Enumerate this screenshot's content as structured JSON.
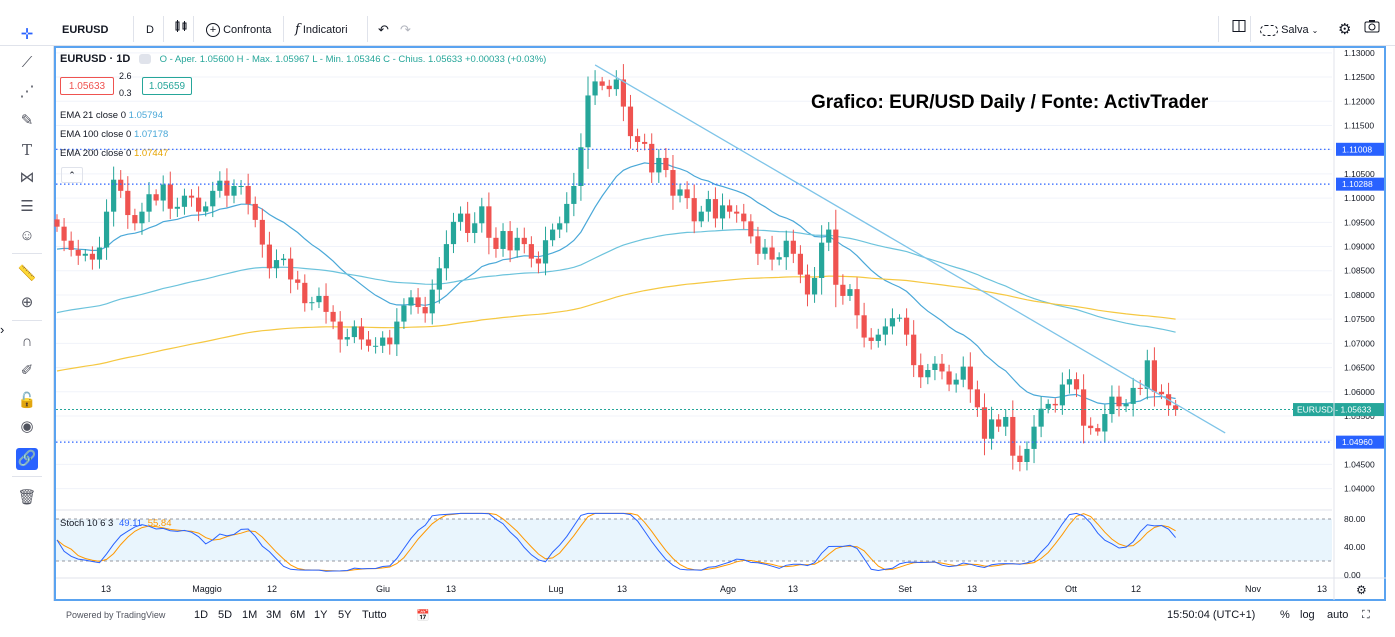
{
  "toolbar": {
    "symbol": "EURUSD",
    "interval": "D",
    "compare_label": "Confronta",
    "indicators_label": "Indicatori",
    "save_label": "Salva"
  },
  "legend": {
    "title": "EURUSD · 1D",
    "ohlc": "O - Aper. 1.05600  H - Max. 1.05967  L - Min. 1.05346  C - Chius. 1.05633  +0.00033 (+0.03%)",
    "sell_price": "1.05633",
    "spread_top": "2.6",
    "spread_bottom": "0.3",
    "buy_price": "1.05659",
    "ema21_label": "EMA 21 close 0",
    "ema21_value": "1.05794",
    "ema100_label": "EMA 100 close 0",
    "ema100_value": "1.07178",
    "ema200_label": "EMA 200 close 0",
    "ema200_value": "1.07447",
    "stoch_label": "Stoch 10 6 3",
    "stoch_k": "49.11",
    "stoch_d": "55.84"
  },
  "annotation": "Grafico: EUR/USD Daily / Fonte: ActivTrader",
  "bottom": {
    "powered": "Powered by TradingView",
    "ranges": [
      "1D",
      "5D",
      "1M",
      "3M",
      "6M",
      "1Y",
      "5Y",
      "Tutto"
    ],
    "time": "15:50:04 (UTC+1)",
    "pct": "%",
    "log": "log",
    "auto": "auto"
  },
  "colors": {
    "up": "#26a69a",
    "down": "#ef5350",
    "ema21": "#4aa8d8",
    "ema100": "#6cc3dc",
    "ema200": "#f5c842",
    "trendline": "#7ec4e8",
    "stoch_k": "#2962ff",
    "stoch_d": "#ff9800",
    "accent": "#2962ff"
  },
  "chart_data": {
    "type": "candlestick",
    "title": "EURUSD · 1D",
    "ylim": [
      1.036,
      1.131
    ],
    "y_ticks": [
      "1.13000",
      "1.12500",
      "1.12000",
      "1.11500",
      "1.11000",
      "1.10500",
      "1.10000",
      "1.09500",
      "1.09000",
      "1.08500",
      "1.08000",
      "1.07500",
      "1.07000",
      "1.06500",
      "1.06000",
      "1.05500",
      "1.05000",
      "1.04500",
      "1.04000"
    ],
    "x_ticks": [
      "13",
      "Maggio",
      "12",
      "Giu",
      "13",
      "Lug",
      "13",
      "Ago",
      "13",
      "Set",
      "13",
      "Ott",
      "12",
      "Nov",
      "13"
    ],
    "horizontal_levels": [
      {
        "value": 1.11008,
        "label": "1.11008"
      },
      {
        "value": 1.10288,
        "label": "1.10288"
      },
      {
        "value": 1.0496,
        "label": "1.04960"
      }
    ],
    "last_price": {
      "value": 1.05633,
      "label": "EURUSD - 1.05633"
    },
    "closes": [
      1.0941,
      1.0912,
      1.0893,
      1.0881,
      1.0885,
      1.0873,
      1.0898,
      1.0972,
      1.1038,
      1.1015,
      1.0965,
      1.0948,
      1.0972,
      1.1008,
      1.0995,
      1.1028,
      1.0978,
      1.0982,
      1.1005,
      1.1001,
      1.0972,
      1.0983,
      1.1015,
      1.1036,
      1.1005,
      1.1025,
      1.1025,
      1.0988,
      1.0955,
      1.0904,
      1.0855,
      1.0872,
      1.0875,
      1.0832,
      1.0825,
      1.0783,
      1.0785,
      1.0798,
      1.0765,
      1.0745,
      1.0708,
      1.0713,
      1.0735,
      1.0708,
      1.0695,
      1.0695,
      1.0712,
      1.0698,
      1.0745,
      1.0778,
      1.0795,
      1.0775,
      1.0762,
      1.0811,
      1.0855,
      1.0905,
      1.0951,
      1.0968,
      1.0928,
      1.0948,
      1.0983,
      1.0918,
      1.0895,
      1.0932,
      1.0892,
      1.0918,
      1.0905,
      1.0875,
      1.0865,
      1.0913,
      1.0935,
      1.0948,
      1.0988,
      1.1025,
      1.1105,
      1.1212,
      1.1241,
      1.1232,
      1.1225,
      1.1245,
      1.1189,
      1.1128,
      1.1116,
      1.1112,
      1.1053,
      1.1083,
      1.1058,
      1.1005,
      1.1018,
      1.1,
      1.0952,
      1.0972,
      1.0998,
      1.0958,
      1.0985,
      1.0972,
      1.0968,
      1.0952,
      1.0921,
      1.0885,
      1.0898,
      1.0873,
      1.0878,
      1.0912,
      1.0885,
      1.0842,
      1.0801,
      1.0835,
      1.0908,
      1.0935,
      1.0821,
      1.0798,
      1.0812,
      1.0758,
      1.0712,
      1.0705,
      1.0718,
      1.0735,
      1.0752,
      1.0753,
      1.0718,
      1.0655,
      1.063,
      1.0645,
      1.0658,
      1.0642,
      1.0615,
      1.0625,
      1.0652,
      1.0605,
      1.0568,
      1.0503,
      1.0543,
      1.0528,
      1.0548,
      1.0468,
      1.0455,
      1.0482,
      1.0528,
      1.0565,
      1.0575,
      1.0572,
      1.0615,
      1.0626,
      1.0605,
      1.053,
      1.0525,
      1.0518,
      1.0554,
      1.059,
      1.057,
      1.0575,
      1.0608,
      1.0606,
      1.0665,
      1.06,
      1.0595,
      1.0572,
      1.0563
    ],
    "series": [
      {
        "name": "EMA 21 close 0",
        "last": 1.05794
      },
      {
        "name": "EMA 100 close 0",
        "last": 1.07178
      },
      {
        "name": "EMA 200 close 0",
        "last": 1.07447
      }
    ],
    "trendline": {
      "from": [
        76,
        1.1275
      ],
      "to": [
        165,
        1.0515
      ]
    },
    "stochastic": {
      "ylim": [
        0,
        90
      ],
      "ticks": [
        "80.00",
        "40.00",
        "0.00"
      ],
      "bands": [
        20,
        80
      ],
      "k_last": 49.11,
      "d_last": 55.84
    }
  }
}
